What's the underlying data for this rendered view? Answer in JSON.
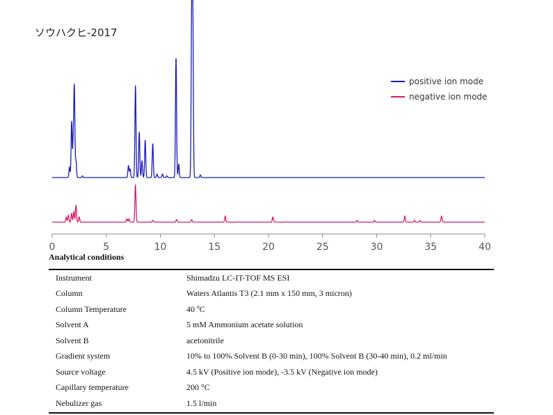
{
  "chart_data": {
    "type": "line",
    "title": "ソウハクヒ-2017",
    "xlabel": "",
    "ylabel": "",
    "xlim": [
      0,
      40
    ],
    "xticks": [
      0,
      5,
      10,
      15,
      20,
      25,
      30,
      35,
      40
    ],
    "grid": false,
    "legend_position": "right",
    "series": [
      {
        "name": "positive ion mode",
        "color": "#1a1ab8",
        "peaks": [
          {
            "x": 1.6,
            "height": 0.06
          },
          {
            "x": 1.8,
            "height": 0.33
          },
          {
            "x": 1.95,
            "height": 0.2
          },
          {
            "x": 2.05,
            "height": 0.52
          },
          {
            "x": 2.2,
            "height": 0.1
          },
          {
            "x": 2.8,
            "height": 0.01
          },
          {
            "x": 7.05,
            "height": 0.07
          },
          {
            "x": 7.2,
            "height": 0.05
          },
          {
            "x": 7.7,
            "height": 0.54
          },
          {
            "x": 8.05,
            "height": 0.27
          },
          {
            "x": 8.3,
            "height": 0.1
          },
          {
            "x": 8.6,
            "height": 0.22
          },
          {
            "x": 9.3,
            "height": 0.2
          },
          {
            "x": 9.7,
            "height": 0.02
          },
          {
            "x": 10.2,
            "height": 0.02
          },
          {
            "x": 10.6,
            "height": 0.01
          },
          {
            "x": 11.45,
            "height": 0.71
          },
          {
            "x": 11.7,
            "height": 0.08
          },
          {
            "x": 12.9,
            "height": 0.96
          },
          {
            "x": 13.0,
            "height": 0.96
          },
          {
            "x": 13.7,
            "height": 0.015
          }
        ]
      },
      {
        "name": "negative ion mode",
        "color": "#d81a6a",
        "peaks": [
          {
            "x": 1.3,
            "height": 0.03
          },
          {
            "x": 1.5,
            "height": 0.04
          },
          {
            "x": 1.8,
            "height": 0.05
          },
          {
            "x": 2.0,
            "height": 0.06
          },
          {
            "x": 2.2,
            "height": 0.1
          },
          {
            "x": 2.5,
            "height": 0.03
          },
          {
            "x": 6.9,
            "height": 0.02
          },
          {
            "x": 7.1,
            "height": 0.02
          },
          {
            "x": 7.7,
            "height": 0.22
          },
          {
            "x": 9.3,
            "height": 0.01
          },
          {
            "x": 11.5,
            "height": 0.015
          },
          {
            "x": 12.9,
            "height": 0.015
          },
          {
            "x": 16.0,
            "height": 0.035
          },
          {
            "x": 20.4,
            "height": 0.03
          },
          {
            "x": 28.2,
            "height": 0.01
          },
          {
            "x": 29.8,
            "height": 0.01
          },
          {
            "x": 32.6,
            "height": 0.035
          },
          {
            "x": 33.5,
            "height": 0.01
          },
          {
            "x": 34.0,
            "height": 0.01
          },
          {
            "x": 36.0,
            "height": 0.035
          }
        ]
      }
    ]
  },
  "conditions": {
    "title": "Analytical conditions",
    "rows": [
      {
        "label": "Instrument",
        "value": "Shimadzu LC-IT-TOF MS ESI"
      },
      {
        "label": "Column",
        "value": "Waters Atlantis T3 (2.1 mm x 150 mm, 3 micron)"
      },
      {
        "label": "Column Temperature",
        "value": "40 ºC"
      },
      {
        "label": "Solvent A",
        "value": "5 mM Ammonium acetate solution"
      },
      {
        "label": "Solvent B",
        "value": "acetonitrile"
      },
      {
        "label": "Gradient system",
        "value": "10% to 100% Solvent B (0-30 min), 100% Solvent B (30-40 min), 0.2 ml/min"
      },
      {
        "label": "Source voltage",
        "value": "4.5 kV (Positive ion mode), -3.5 kV (Negative ion mode)"
      },
      {
        "label": "Capillary temperature",
        "value": "200 °C"
      },
      {
        "label": "Nebulizer gas",
        "value": "1.5 l/min"
      }
    ]
  }
}
